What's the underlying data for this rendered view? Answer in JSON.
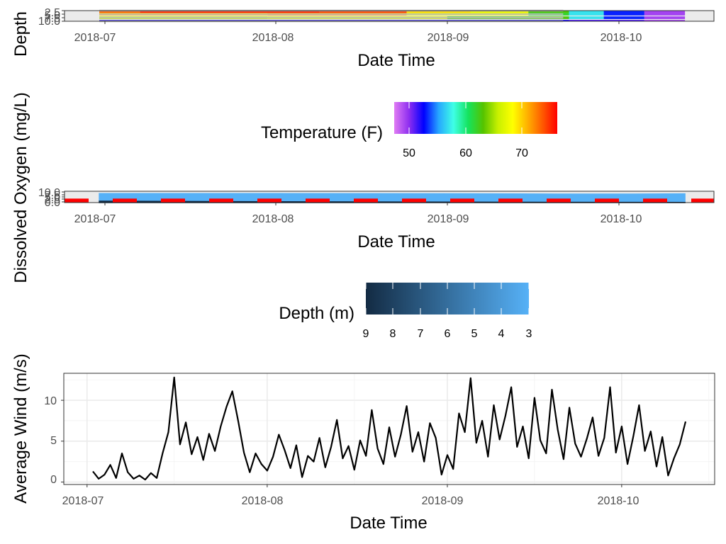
{
  "figure": {
    "depth_panel": {
      "ylabel": "Depth",
      "xlabel": "Date Time",
      "x_ticks": [
        "2018-07",
        "2018-08",
        "2018-09",
        "2018-10"
      ],
      "y_ticks": [
        "2.5",
        "5.0",
        "7.5",
        "10.0"
      ]
    },
    "temperature_legend": {
      "title": "Temperature (F)",
      "ticks": [
        "50",
        "60",
        "70"
      ]
    },
    "do_panel": {
      "ylabel": "Dissolved Oxygen (mg/L)",
      "xlabel": "Date Time",
      "x_ticks": [
        "2018-07",
        "2018-08",
        "2018-09",
        "2018-10"
      ],
      "y_ticks": [
        "0.0",
        "2.5",
        "5.0",
        "7.5",
        "10.0"
      ]
    },
    "depth_legend": {
      "title": "Depth (m)",
      "ticks": [
        "9",
        "8",
        "7",
        "6",
        "5",
        "4",
        "3"
      ]
    },
    "wind_panel": {
      "ylabel": "Average Wind (m/s)",
      "xlabel": "Date Time",
      "x_ticks": [
        "2018-07",
        "2018-08",
        "2018-09",
        "2018-10"
      ],
      "y_ticks": [
        "0",
        "5",
        "10"
      ]
    }
  },
  "colors": {
    "temperature_scale": [
      "#e07cf3",
      "#8e2ef0",
      "#0000ff",
      "#26a7ff",
      "#3fffe6",
      "#15e35d",
      "#55c300",
      "#c8f000",
      "#ffff00",
      "#ffb000",
      "#ff5a00",
      "#ff0000"
    ],
    "depth_scale": [
      "#132b43",
      "#56b1f7"
    ],
    "panel_background": "#ebebeb",
    "do_threshold": "#ff0000",
    "depth_reference": "#bdbdbd",
    "wind_line": "#000000"
  },
  "chart_data": [
    {
      "type": "heatmap",
      "xlabel": "Date Time",
      "ylabel": "Depth",
      "x_range": [
        "2018-06-27",
        "2018-10-17"
      ],
      "ylim": [
        10.0,
        2.5
      ],
      "y_reversed": true,
      "colorbar": {
        "title": "Temperature (F)",
        "range": [
          47,
          77
        ]
      },
      "rows": [
        {
          "depth": 2.5,
          "segments": [
            {
              "start": "2018-07-03",
              "end": "2018-07-10",
              "temperature_f": 74
            },
            {
              "start": "2018-07-10",
              "end": "2018-08-10",
              "temperature_f": 76
            },
            {
              "start": "2018-08-10",
              "end": "2018-08-25",
              "temperature_f": 75
            },
            {
              "start": "2018-08-25",
              "end": "2018-09-05",
              "temperature_f": 70
            },
            {
              "start": "2018-09-05",
              "end": "2018-09-15",
              "temperature_f": 68
            },
            {
              "start": "2018-09-15",
              "end": "2018-09-22",
              "temperature_f": 63
            },
            {
              "start": "2018-09-22",
              "end": "2018-09-28",
              "temperature_f": 57
            },
            {
              "start": "2018-09-28",
              "end": "2018-10-05",
              "temperature_f": 53
            },
            {
              "start": "2018-10-05",
              "end": "2018-10-12",
              "temperature_f": 49
            }
          ]
        },
        {
          "depth": 5.0,
          "segments": [
            {
              "start": "2018-07-03",
              "end": "2018-08-01",
              "temperature_f": 71
            },
            {
              "start": "2018-08-01",
              "end": "2018-08-25",
              "temperature_f": 72
            },
            {
              "start": "2018-08-25",
              "end": "2018-09-15",
              "temperature_f": 68
            },
            {
              "start": "2018-09-15",
              "end": "2018-09-22",
              "temperature_f": 62
            },
            {
              "start": "2018-09-22",
              "end": "2018-09-28",
              "temperature_f": 57
            },
            {
              "start": "2018-09-28",
              "end": "2018-10-05",
              "temperature_f": 53
            },
            {
              "start": "2018-10-05",
              "end": "2018-10-12",
              "temperature_f": 49
            }
          ]
        },
        {
          "depth": 7.5,
          "segments": [
            {
              "start": "2018-07-03",
              "end": "2018-08-01",
              "temperature_f": 66
            },
            {
              "start": "2018-08-01",
              "end": "2018-09-01",
              "temperature_f": 67
            },
            {
              "start": "2018-09-01",
              "end": "2018-09-22",
              "temperature_f": 63
            },
            {
              "start": "2018-09-22",
              "end": "2018-09-28",
              "temperature_f": 57
            },
            {
              "start": "2018-09-28",
              "end": "2018-10-05",
              "temperature_f": 53
            },
            {
              "start": "2018-10-05",
              "end": "2018-10-12",
              "temperature_f": 49
            }
          ]
        },
        {
          "depth": 10.0,
          "segments": [
            {
              "start": "2018-07-03",
              "end": "2018-09-22",
              "temperature_f": 52
            },
            {
              "start": "2018-09-22",
              "end": "2018-10-05",
              "temperature_f": 51
            },
            {
              "start": "2018-10-05",
              "end": "2018-10-12",
              "temperature_f": 49
            }
          ]
        }
      ]
    },
    {
      "type": "area",
      "xlabel": "Date Time",
      "ylabel": "Dissolved Oxygen (mg/L)",
      "x_range": [
        "2018-06-27",
        "2018-10-17"
      ],
      "ylim": [
        0,
        12
      ],
      "colorbar": {
        "title": "Depth (m)",
        "range": [
          9,
          3
        ]
      },
      "threshold_line": {
        "value": 2.0,
        "style": "dashed"
      },
      "series": [
        {
          "depth_m": 3,
          "x": [
            "2018-07-03",
            "2018-08-01",
            "2018-09-01",
            "2018-09-20",
            "2018-10-01",
            "2018-10-12"
          ],
          "y": [
            9.5,
            9.6,
            9.4,
            9.0,
            9.0,
            9.3
          ]
        },
        {
          "depth_m": 9,
          "x": [
            "2018-07-03",
            "2018-08-01",
            "2018-09-01",
            "2018-10-01",
            "2018-10-12"
          ],
          "y": [
            1.5,
            1.0,
            0.5,
            0.3,
            0.2
          ]
        }
      ]
    },
    {
      "type": "line",
      "xlabel": "Date Time",
      "ylabel": "Average Wind (m/s)",
      "x_range": [
        "2018-06-27",
        "2018-10-17"
      ],
      "ylim": [
        -0.3,
        13.3
      ],
      "grid": true,
      "x": [
        "2018-07-02",
        "2018-07-03",
        "2018-07-04",
        "2018-07-05",
        "2018-07-06",
        "2018-07-07",
        "2018-07-08",
        "2018-07-09",
        "2018-07-10",
        "2018-07-11",
        "2018-07-12",
        "2018-07-13",
        "2018-07-14",
        "2018-07-15",
        "2018-07-16",
        "2018-07-17",
        "2018-07-18",
        "2018-07-19",
        "2018-07-20",
        "2018-07-21",
        "2018-07-22",
        "2018-07-23",
        "2018-07-24",
        "2018-07-25",
        "2018-07-26",
        "2018-07-27",
        "2018-07-28",
        "2018-07-29",
        "2018-07-30",
        "2018-07-31",
        "2018-08-01",
        "2018-08-02",
        "2018-08-03",
        "2018-08-04",
        "2018-08-05",
        "2018-08-06",
        "2018-08-07",
        "2018-08-08",
        "2018-08-09",
        "2018-08-10",
        "2018-08-11",
        "2018-08-12",
        "2018-08-13",
        "2018-08-14",
        "2018-08-15",
        "2018-08-16",
        "2018-08-17",
        "2018-08-18",
        "2018-08-19",
        "2018-08-20",
        "2018-08-21",
        "2018-08-22",
        "2018-08-23",
        "2018-08-24",
        "2018-08-25",
        "2018-08-26",
        "2018-08-27",
        "2018-08-28",
        "2018-08-29",
        "2018-08-30",
        "2018-08-31",
        "2018-09-01",
        "2018-09-02",
        "2018-09-03",
        "2018-09-04",
        "2018-09-05",
        "2018-09-06",
        "2018-09-07",
        "2018-09-08",
        "2018-09-09",
        "2018-09-10",
        "2018-09-11",
        "2018-09-12",
        "2018-09-13",
        "2018-09-14",
        "2018-09-15",
        "2018-09-16",
        "2018-09-17",
        "2018-09-18",
        "2018-09-19",
        "2018-09-20",
        "2018-09-21",
        "2018-09-22",
        "2018-09-23",
        "2018-09-24",
        "2018-09-25",
        "2018-09-26",
        "2018-09-27",
        "2018-09-28",
        "2018-09-29",
        "2018-09-30",
        "2018-10-01",
        "2018-10-02",
        "2018-10-03",
        "2018-10-04",
        "2018-10-05",
        "2018-10-06",
        "2018-10-07",
        "2018-10-08",
        "2018-10-09",
        "2018-10-10",
        "2018-10-11",
        "2018-10-12"
      ],
      "y": [
        1.3,
        0.4,
        0.9,
        2.1,
        0.5,
        3.5,
        1.2,
        0.4,
        0.8,
        0.3,
        1.1,
        0.5,
        3.5,
        6.1,
        12.8,
        4.6,
        7.3,
        3.4,
        5.5,
        2.7,
        5.9,
        3.8,
        6.8,
        9.2,
        11.1,
        7.5,
        3.6,
        1.2,
        3.5,
        2.2,
        1.4,
        3.1,
        5.8,
        3.9,
        1.7,
        4.5,
        0.6,
        3.2,
        2.5,
        5.4,
        1.8,
        4.3,
        7.6,
        2.9,
        4.4,
        1.5,
        5.1,
        3.2,
        8.8,
        4.1,
        2.2,
        6.7,
        3.1,
        5.8,
        9.3,
        3.7,
        6.1,
        2.5,
        7.2,
        5.4,
        0.9,
        3.3,
        1.6,
        8.4,
        6.1,
        12.7,
        4.8,
        7.5,
        3.1,
        9.4,
        5.2,
        8.1,
        11.6,
        4.3,
        6.8,
        2.9,
        10.3,
        5.1,
        3.5,
        11.3,
        6.4,
        2.8,
        9.1,
        4.7,
        3.1,
        5.3,
        7.9,
        3.2,
        5.4,
        11.6,
        3.6,
        6.8,
        2.2,
        5.6,
        9.4,
        3.8,
        6.2,
        1.9,
        5.5,
        0.8,
        2.9,
        4.6,
        7.4
      ]
    }
  ]
}
